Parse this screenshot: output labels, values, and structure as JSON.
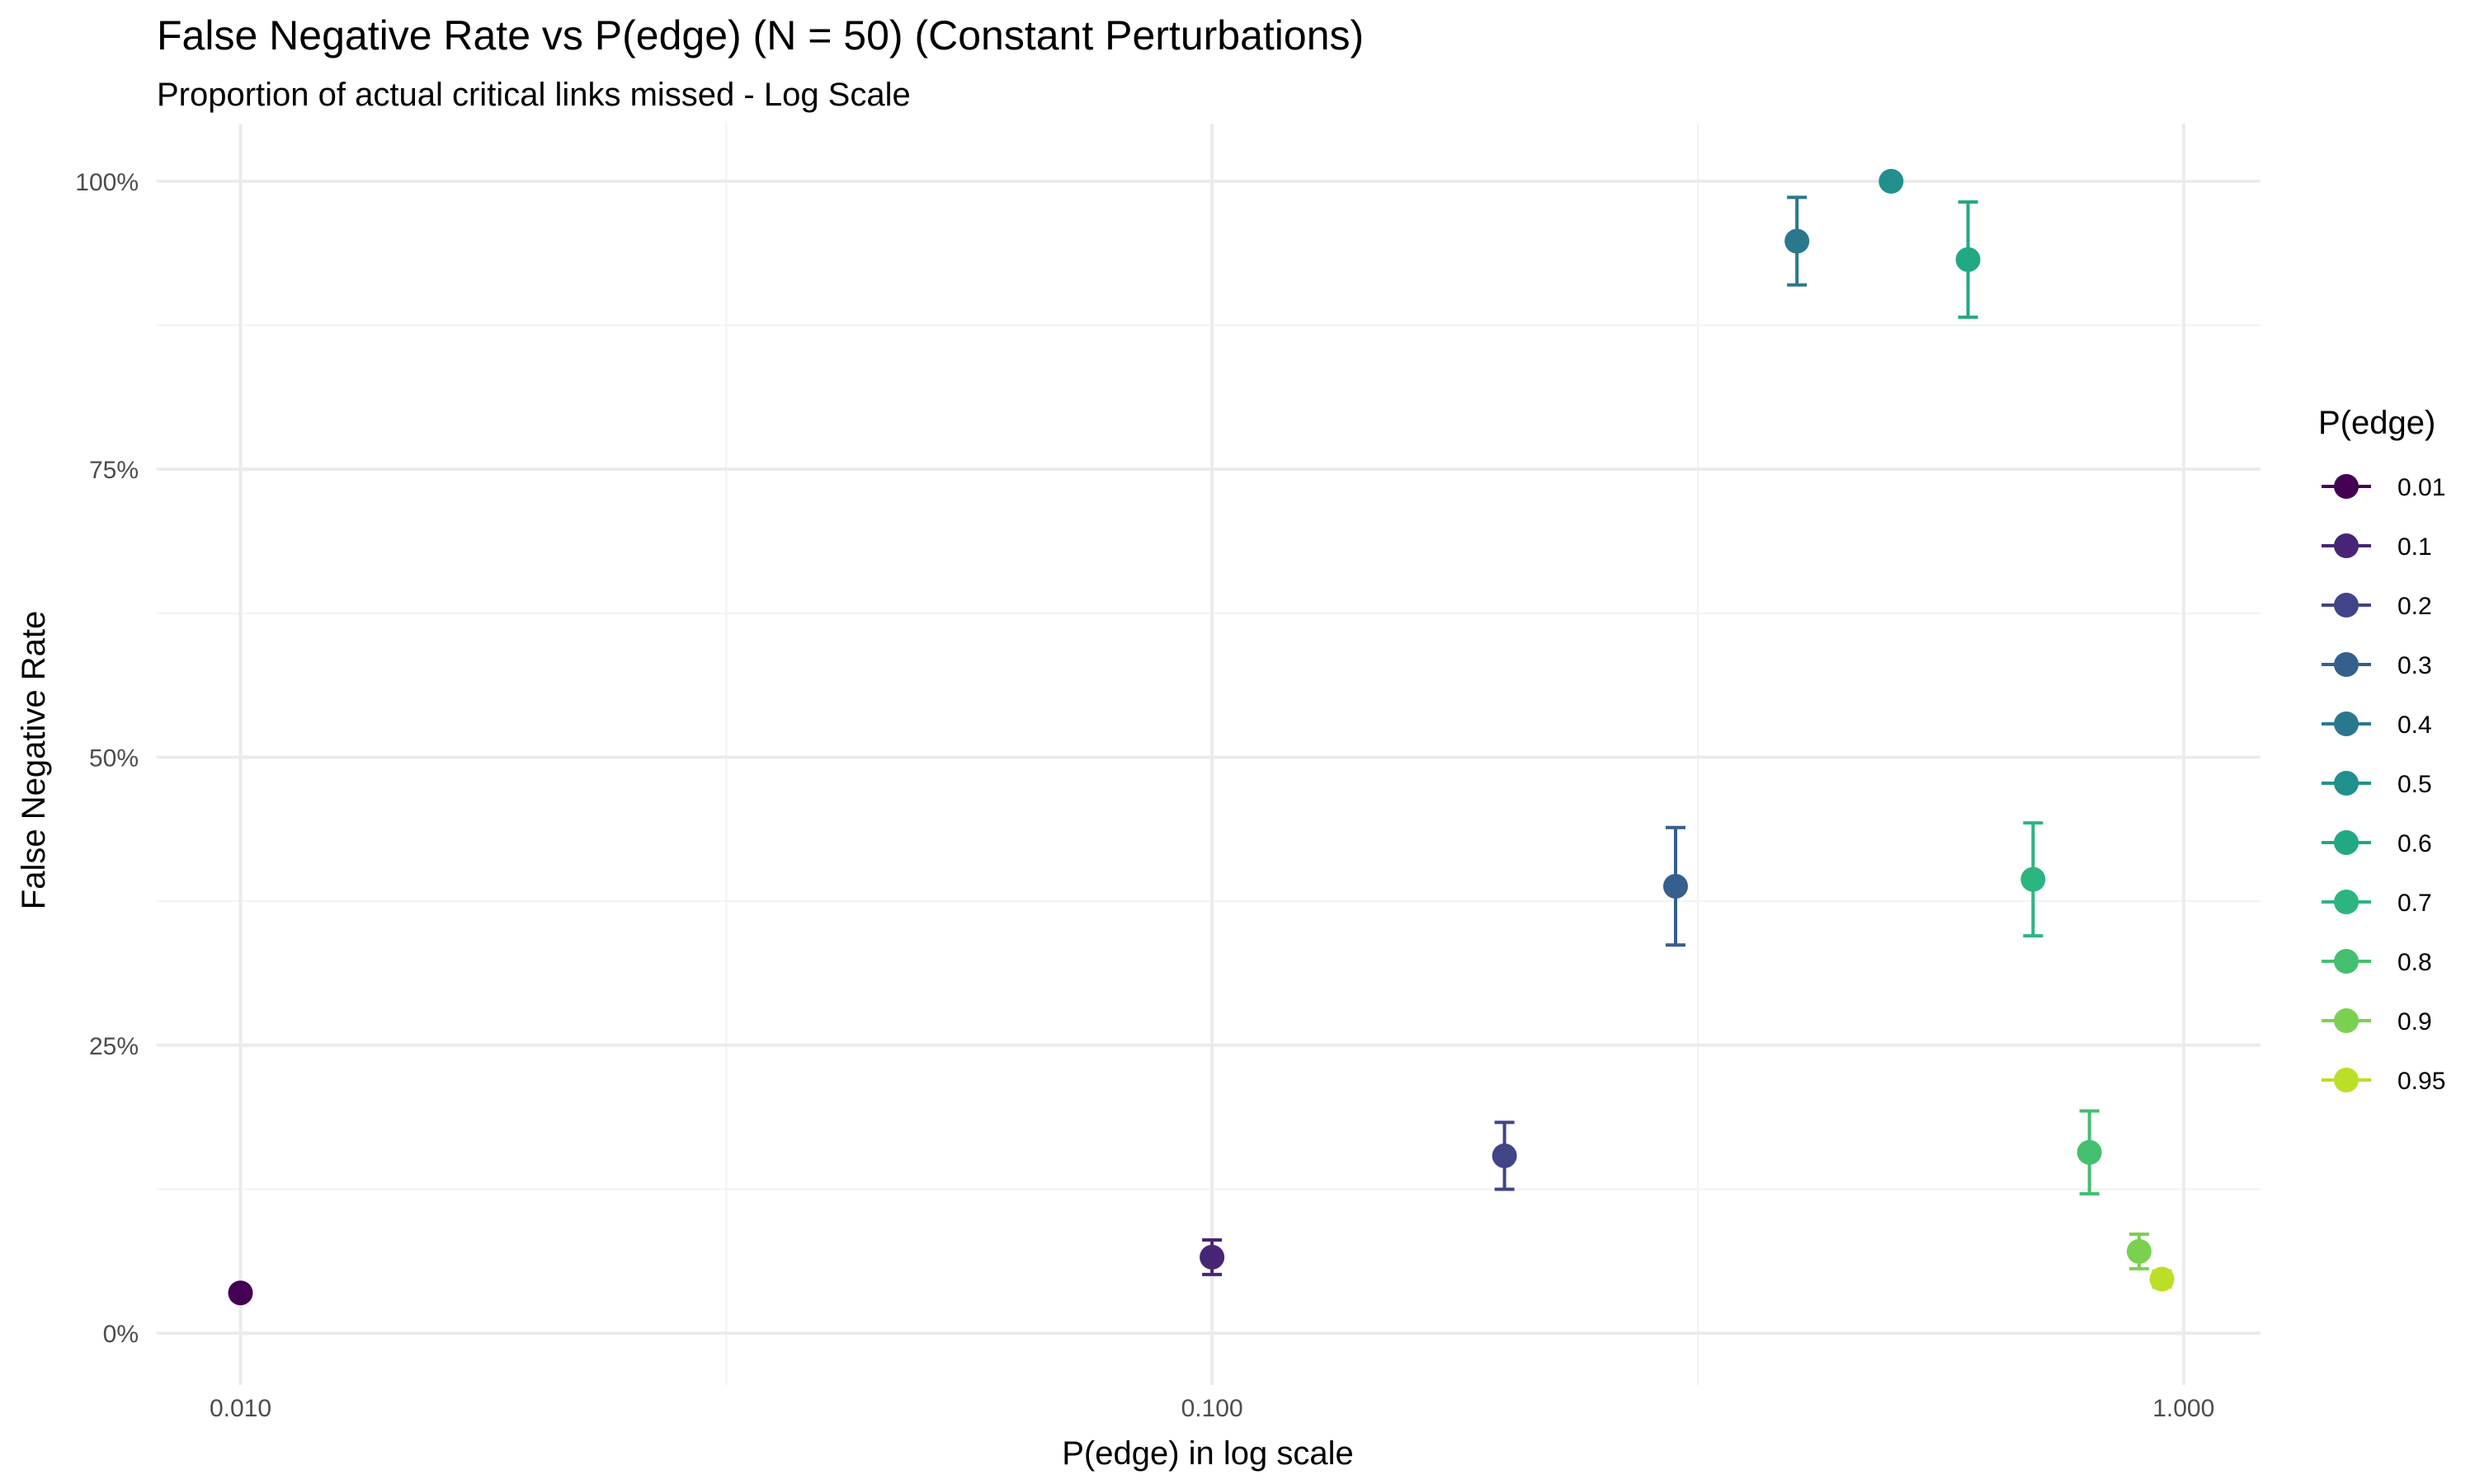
{
  "chart_data": {
    "type": "scatter",
    "title": "False Negative Rate vs P(edge) (N = 50) (Constant Perturbations)",
    "subtitle": "Proportion of actual critical links missed - Log Scale",
    "xlabel": "P(edge) in log scale",
    "ylabel": "False Negative Rate",
    "x_scale": "log10",
    "xlim": [
      0.0082,
      1.2
    ],
    "ylim": [
      -0.045,
      1.05
    ],
    "x_ticks": [
      0.01,
      0.1,
      1.0
    ],
    "x_tick_labels": [
      "0.010",
      "0.100",
      "1.000"
    ],
    "y_ticks": [
      0,
      0.25,
      0.5,
      0.75,
      1.0
    ],
    "y_tick_labels": [
      "0%",
      "25%",
      "50%",
      "75%",
      "100%"
    ],
    "grid": true,
    "legend": {
      "title": "P(edge)",
      "position": "right"
    },
    "series": [
      {
        "name": "0.01",
        "color": "#440154",
        "x": 0.01,
        "y": 0.035,
        "ymin": 0.03,
        "ymax": 0.04
      },
      {
        "name": "0.1",
        "color": "#482475",
        "x": 0.1,
        "y": 0.066,
        "ymin": 0.051,
        "ymax": 0.081
      },
      {
        "name": "0.2",
        "color": "#414487",
        "x": 0.2,
        "y": 0.154,
        "ymin": 0.125,
        "ymax": 0.183
      },
      {
        "name": "0.3",
        "color": "#355F8D",
        "x": 0.3,
        "y": 0.388,
        "ymin": 0.337,
        "ymax": 0.439
      },
      {
        "name": "0.4",
        "color": "#2A788E",
        "x": 0.4,
        "y": 0.948,
        "ymin": 0.91,
        "ymax": 0.986
      },
      {
        "name": "0.5",
        "color": "#21908C",
        "x": 0.5,
        "y": 1.0,
        "ymin": 1.0,
        "ymax": 1.0
      },
      {
        "name": "0.6",
        "color": "#22A884",
        "x": 0.6,
        "y": 0.932,
        "ymin": 0.882,
        "ymax": 0.982
      },
      {
        "name": "0.7",
        "color": "#2CB581",
        "x": 0.7,
        "y": 0.394,
        "ymin": 0.345,
        "ymax": 0.443
      },
      {
        "name": "0.8",
        "color": "#44BF70",
        "x": 0.8,
        "y": 0.157,
        "ymin": 0.121,
        "ymax": 0.193
      },
      {
        "name": "0.9",
        "color": "#7AD151",
        "x": 0.9,
        "y": 0.071,
        "ymin": 0.056,
        "ymax": 0.086
      },
      {
        "name": "0.95",
        "color": "#BBDF27",
        "x": 0.95,
        "y": 0.047,
        "ymin": 0.04,
        "ymax": 0.054
      }
    ]
  }
}
